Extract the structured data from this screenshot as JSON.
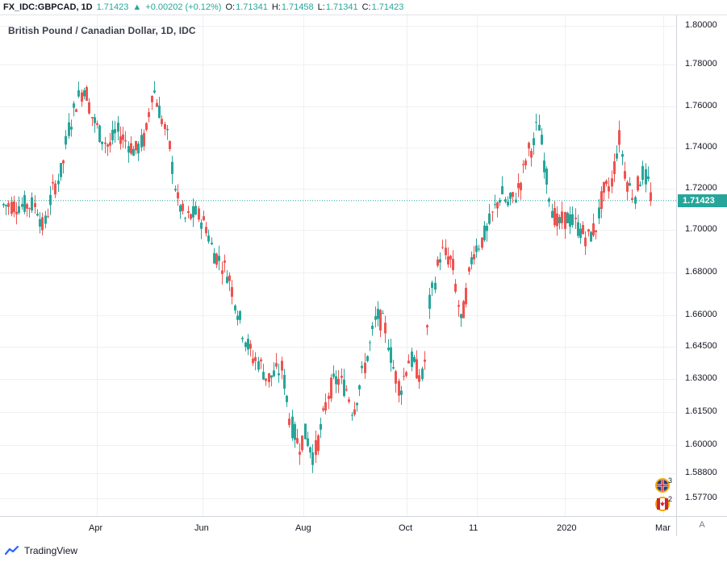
{
  "header": {
    "symbol": "FX_IDC:GBPCAD, 1D",
    "last": "1.71423",
    "arrow": "▲",
    "change": "+0.00202 (+0.12%)",
    "o_label": "O:",
    "o_val": "1.71341",
    "h_label": "H:",
    "h_val": "1.71458",
    "l_label": "L:",
    "l_val": "1.71341",
    "c_label": "C:",
    "c_val": "1.71423"
  },
  "price_tag": "1.71423",
  "axis_button": "A",
  "branding": "TradingView",
  "events": {
    "gb_count": "3",
    "ca_count": "2"
  },
  "colors": {
    "up": "#26a69a",
    "down": "#ef5350",
    "grid": "#eef0f3",
    "last_line": "#26a69a"
  },
  "chart_data": {
    "type": "candlestick",
    "title": "British Pound / Canadian Dollar, 1D, IDC",
    "y_ticks": [
      "1.80000",
      "1.78000",
      "1.76000",
      "1.74000",
      "1.72000",
      "1.70000",
      "1.68000",
      "1.66000",
      "1.64500",
      "1.63000",
      "1.61500",
      "1.60000",
      "1.58800",
      "1.57700"
    ],
    "x_ticks": [
      "Apr",
      "Jun",
      "Aug",
      "Oct",
      "11",
      "2020",
      "Mar"
    ],
    "grid": true,
    "last_price": 1.71423,
    "series": [
      {
        "date": "2019-02-25",
        "close": 1.712
      },
      {
        "date": "2019-03-01",
        "close": 1.7
      },
      {
        "date": "2019-03-06",
        "close": 1.718
      },
      {
        "date": "2019-03-12",
        "close": 1.73
      },
      {
        "date": "2019-03-15",
        "close": 1.748
      },
      {
        "date": "2019-03-20",
        "close": 1.762
      },
      {
        "date": "2019-03-25",
        "close": 1.77
      },
      {
        "date": "2019-03-29",
        "close": 1.755
      },
      {
        "date": "2019-04-03",
        "close": 1.746
      },
      {
        "date": "2019-04-08",
        "close": 1.74
      },
      {
        "date": "2019-04-12",
        "close": 1.748
      },
      {
        "date": "2019-04-17",
        "close": 1.744
      },
      {
        "date": "2019-04-23",
        "close": 1.738
      },
      {
        "date": "2019-04-29",
        "close": 1.745
      },
      {
        "date": "2019-05-03",
        "close": 1.77
      },
      {
        "date": "2019-05-08",
        "close": 1.755
      },
      {
        "date": "2019-05-13",
        "close": 1.74
      },
      {
        "date": "2019-05-17",
        "close": 1.715
      },
      {
        "date": "2019-05-22",
        "close": 1.705
      },
      {
        "date": "2019-05-28",
        "close": 1.708
      },
      {
        "date": "2019-06-03",
        "close": 1.702
      },
      {
        "date": "2019-06-07",
        "close": 1.69
      },
      {
        "date": "2019-06-12",
        "close": 1.685
      },
      {
        "date": "2019-06-17",
        "close": 1.678
      },
      {
        "date": "2019-06-21",
        "close": 1.665
      },
      {
        "date": "2019-06-26",
        "close": 1.65
      },
      {
        "date": "2019-07-01",
        "close": 1.64
      },
      {
        "date": "2019-07-05",
        "close": 1.638
      },
      {
        "date": "2019-07-10",
        "close": 1.63
      },
      {
        "date": "2019-07-16",
        "close": 1.633
      },
      {
        "date": "2019-07-19",
        "close": 1.635
      },
      {
        "date": "2019-07-24",
        "close": 1.61
      },
      {
        "date": "2019-07-29",
        "close": 1.6
      },
      {
        "date": "2019-08-02",
        "close": 1.605
      },
      {
        "date": "2019-08-07",
        "close": 1.595
      },
      {
        "date": "2019-08-12",
        "close": 1.61
      },
      {
        "date": "2019-08-16",
        "close": 1.625
      },
      {
        "date": "2019-08-21",
        "close": 1.63
      },
      {
        "date": "2019-08-27",
        "close": 1.625
      },
      {
        "date": "2019-08-30",
        "close": 1.615
      },
      {
        "date": "2019-09-04",
        "close": 1.63
      },
      {
        "date": "2019-09-09",
        "close": 1.645
      },
      {
        "date": "2019-09-13",
        "close": 1.66
      },
      {
        "date": "2019-09-18",
        "close": 1.655
      },
      {
        "date": "2019-09-23",
        "close": 1.635
      },
      {
        "date": "2019-09-27",
        "close": 1.625
      },
      {
        "date": "2019-10-02",
        "close": 1.64
      },
      {
        "date": "2019-10-08",
        "close": 1.63
      },
      {
        "date": "2019-10-11",
        "close": 1.665
      },
      {
        "date": "2019-10-16",
        "close": 1.69
      },
      {
        "date": "2019-10-21",
        "close": 1.685
      },
      {
        "date": "2019-10-25",
        "close": 1.655
      },
      {
        "date": "2019-10-30",
        "close": 1.69
      },
      {
        "date": "2019-11-04",
        "close": 1.695
      },
      {
        "date": "2019-11-08",
        "close": 1.7
      },
      {
        "date": "2019-11-13",
        "close": 1.71
      },
      {
        "date": "2019-11-18",
        "close": 1.718
      },
      {
        "date": "2019-11-22",
        "close": 1.712
      },
      {
        "date": "2019-11-27",
        "close": 1.716
      },
      {
        "date": "2019-12-02",
        "close": 1.725
      },
      {
        "date": "2019-12-06",
        "close": 1.738
      },
      {
        "date": "2019-12-11",
        "close": 1.742
      },
      {
        "date": "2019-12-13",
        "close": 1.755
      },
      {
        "date": "2019-12-18",
        "close": 1.73
      },
      {
        "date": "2019-12-23",
        "close": 1.71
      },
      {
        "date": "2019-12-27",
        "close": 1.702
      },
      {
        "date": "2020-01-02",
        "close": 1.706
      },
      {
        "date": "2020-01-07",
        "close": 1.703
      },
      {
        "date": "2020-01-10",
        "close": 1.7
      },
      {
        "date": "2020-01-15",
        "close": 1.696
      },
      {
        "date": "2020-01-20",
        "close": 1.702
      },
      {
        "date": "2020-01-24",
        "close": 1.718
      },
      {
        "date": "2020-01-29",
        "close": 1.722
      },
      {
        "date": "2020-02-03",
        "close": 1.745
      },
      {
        "date": "2020-02-07",
        "close": 1.725
      },
      {
        "date": "2020-02-12",
        "close": 1.716
      },
      {
        "date": "2020-02-17",
        "close": 1.728
      },
      {
        "date": "2020-02-21",
        "close": 1.722
      },
      {
        "date": "2020-02-24",
        "close": 1.708
      },
      {
        "date": "2020-02-26",
        "close": 1.7142
      }
    ]
  }
}
